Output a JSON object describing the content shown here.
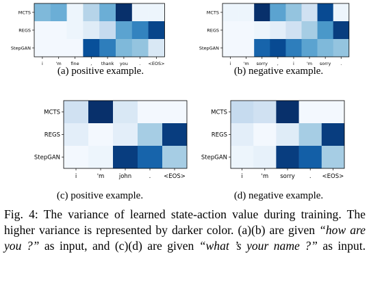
{
  "chart_data": [
    {
      "type": "heatmap",
      "caption": "(a) positive example.",
      "rows": [
        "MCTS",
        "REGS",
        "StepGAN"
      ],
      "columns": [
        "i",
        "'m",
        "fine",
        ",",
        "thank",
        "you",
        ".",
        "<EOS>"
      ],
      "values": [
        [
          0.45,
          0.5,
          0.05,
          0.3,
          0.5,
          1.0,
          0.05,
          0.05
        ],
        [
          0.02,
          0.02,
          0.05,
          0.12,
          0.25,
          0.55,
          0.68,
          0.92
        ],
        [
          0.02,
          0.02,
          0.02,
          0.88,
          0.7,
          0.45,
          0.4,
          0.15
        ]
      ],
      "color_scale": "Blues"
    },
    {
      "type": "heatmap",
      "caption": "(b) negative example.",
      "rows": [
        "MCTS",
        "REGS",
        "StepGAN"
      ],
      "columns": [
        "i",
        "'m",
        "sorry",
        ",",
        "i",
        "'m",
        "sorry",
        "."
      ],
      "values": [
        [
          0.05,
          0.05,
          1.0,
          0.55,
          0.4,
          0.2,
          0.9,
          0.05
        ],
        [
          0.02,
          0.02,
          0.05,
          0.1,
          0.2,
          0.35,
          0.6,
          0.95
        ],
        [
          0.02,
          0.02,
          0.8,
          0.9,
          0.7,
          0.55,
          0.45,
          0.4
        ]
      ],
      "color_scale": "Blues"
    },
    {
      "type": "heatmap",
      "caption": "(c) positive example.",
      "rows": [
        "MCTS",
        "REGS",
        "StepGAN"
      ],
      "columns": [
        "i",
        "'m",
        "john",
        ".",
        "<EOS>"
      ],
      "values": [
        [
          0.2,
          1.0,
          0.15,
          0.02,
          0.02
        ],
        [
          0.1,
          0.02,
          0.1,
          0.35,
          0.95
        ],
        [
          0.02,
          0.05,
          0.95,
          0.8,
          0.35
        ]
      ],
      "color_scale": "Blues"
    },
    {
      "type": "heatmap",
      "caption": "(d) negative example.",
      "rows": [
        "MCTS",
        "REGS",
        "StepGAN"
      ],
      "columns": [
        "i",
        "'m",
        "sorry",
        ".",
        "<EOS>"
      ],
      "values": [
        [
          0.25,
          0.2,
          1.0,
          0.02,
          0.02
        ],
        [
          0.1,
          0.02,
          0.12,
          0.35,
          0.95
        ],
        [
          0.05,
          0.08,
          0.95,
          0.82,
          0.35
        ]
      ],
      "color_scale": "Blues"
    }
  ],
  "figure_caption": {
    "label": "Fig. 4:",
    "text_1": "The variance of learned state-action value during training. The higher variance is represented by darker color. (a)(b) are given ",
    "quote_1": "“how are you ?”",
    "text_2": " as input, and (c)(d) are given ",
    "quote_2": "“what ’s your name ?”",
    "text_3": " as input."
  }
}
